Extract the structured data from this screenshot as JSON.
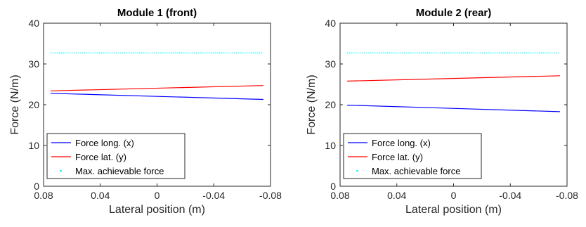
{
  "chart_data": [
    {
      "type": "line",
      "title": "Module 1 (front)",
      "xlabel": "Lateral position (m)",
      "ylabel": "Force (N/m)",
      "xlim": [
        0.08,
        -0.08
      ],
      "x_reversed": true,
      "ylim": [
        0,
        40
      ],
      "xticks": [
        0.08,
        0.04,
        0,
        -0.04,
        -0.08
      ],
      "xtick_labels": [
        "0.08",
        "0.04",
        "0",
        "-0.04",
        "-0.08"
      ],
      "yticks": [
        0,
        10,
        20,
        30,
        40
      ],
      "ytick_labels": [
        "0",
        "10",
        "20",
        "30",
        "40"
      ],
      "grid": false,
      "legend_position": "bottom-left",
      "series": [
        {
          "name": "Force long. (x)",
          "color": "#0000ff",
          "style": "solid",
          "x": [
            0.075,
            -0.075
          ],
          "y": [
            22.8,
            21.3
          ]
        },
        {
          "name": "Force lat. (y)",
          "color": "#ff0000",
          "style": "solid",
          "x": [
            0.075,
            -0.075
          ],
          "y": [
            23.4,
            24.7
          ]
        },
        {
          "name": "Max. achievable force",
          "color": "#00ffff",
          "style": "dotted",
          "x": [
            0.075,
            -0.075
          ],
          "y": [
            32.7,
            32.7
          ]
        }
      ]
    },
    {
      "type": "line",
      "title": "Module 2 (rear)",
      "xlabel": "Lateral position (m)",
      "ylabel": "Force (N/m)",
      "xlim": [
        0.08,
        -0.08
      ],
      "x_reversed": true,
      "ylim": [
        0,
        40
      ],
      "xticks": [
        0.08,
        0.04,
        0,
        -0.04,
        -0.08
      ],
      "xtick_labels": [
        "0.08",
        "0.04",
        "0",
        "-0.04",
        "-0.08"
      ],
      "yticks": [
        0,
        10,
        20,
        30,
        40
      ],
      "ytick_labels": [
        "0",
        "10",
        "20",
        "30",
        "40"
      ],
      "grid": false,
      "legend_position": "bottom-left",
      "series": [
        {
          "name": "Force long. (x)",
          "color": "#0000ff",
          "style": "solid",
          "x": [
            0.075,
            -0.075
          ],
          "y": [
            19.9,
            18.3
          ]
        },
        {
          "name": "Force lat. (y)",
          "color": "#ff0000",
          "style": "solid",
          "x": [
            0.075,
            -0.075
          ],
          "y": [
            25.8,
            27.1
          ]
        },
        {
          "name": "Max. achievable force",
          "color": "#00ffff",
          "style": "dotted",
          "x": [
            0.075,
            -0.075
          ],
          "y": [
            32.7,
            32.7
          ]
        }
      ]
    }
  ]
}
